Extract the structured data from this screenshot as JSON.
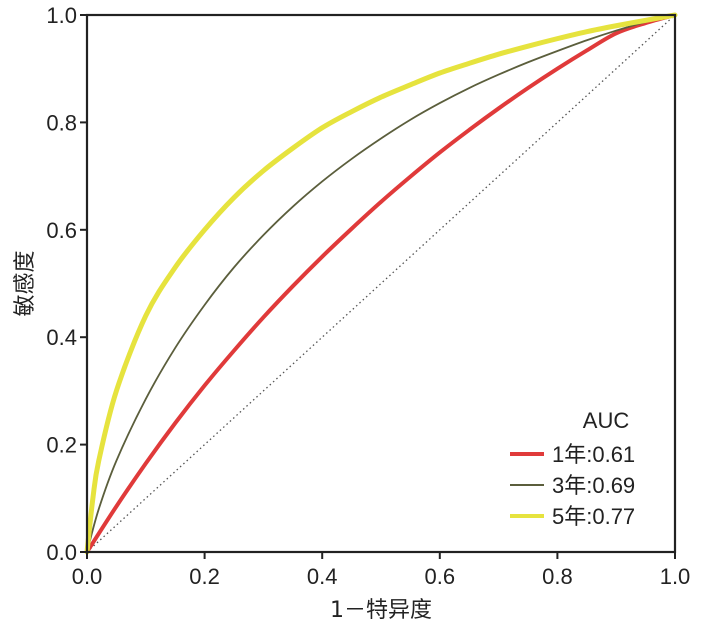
{
  "chart_data": {
    "type": "line",
    "xlabel": "1－特异度",
    "ylabel": "敏感度",
    "xlim": [
      0.0,
      1.0
    ],
    "ylim": [
      0.0,
      1.0
    ],
    "x_ticks": [
      "0.0",
      "0.2",
      "0.4",
      "0.6",
      "0.8",
      "1.0"
    ],
    "y_ticks": [
      "0.0",
      "0.2",
      "0.4",
      "0.6",
      "0.8",
      "1.0"
    ],
    "grid": false,
    "legend": {
      "title": "AUC",
      "placement": "bottom-right"
    },
    "reference_line": {
      "x": [
        0,
        1
      ],
      "y": [
        0,
        1
      ],
      "style": "dotted",
      "color": "#555555"
    },
    "series": [
      {
        "name": "1年:0.61",
        "color": "#e03a3a",
        "x": [
          0,
          0.05,
          0.1,
          0.15,
          0.2,
          0.25,
          0.3,
          0.35,
          0.4,
          0.45,
          0.5,
          0.55,
          0.6,
          0.65,
          0.7,
          0.75,
          0.8,
          0.85,
          0.9,
          0.95,
          1.0
        ],
        "y": [
          0,
          0.085,
          0.165,
          0.24,
          0.31,
          0.375,
          0.437,
          0.495,
          0.55,
          0.602,
          0.652,
          0.699,
          0.744,
          0.786,
          0.826,
          0.864,
          0.9,
          0.934,
          0.966,
          0.985,
          1.0
        ]
      },
      {
        "name": "3年:0.69",
        "color": "#5b5e3c",
        "x": [
          0,
          0.02,
          0.05,
          0.1,
          0.15,
          0.2,
          0.25,
          0.3,
          0.35,
          0.4,
          0.45,
          0.5,
          0.55,
          0.6,
          0.65,
          0.7,
          0.75,
          0.8,
          0.85,
          0.9,
          0.95,
          1.0
        ],
        "y": [
          0,
          0.08,
          0.17,
          0.285,
          0.38,
          0.46,
          0.53,
          0.59,
          0.643,
          0.69,
          0.732,
          0.77,
          0.805,
          0.836,
          0.864,
          0.889,
          0.912,
          0.933,
          0.953,
          0.971,
          0.987,
          1.0
        ]
      },
      {
        "name": "5年:0.77",
        "color": "#e6e33e",
        "x": [
          0,
          0.01,
          0.02,
          0.05,
          0.1,
          0.15,
          0.2,
          0.25,
          0.3,
          0.35,
          0.4,
          0.45,
          0.5,
          0.55,
          0.6,
          0.65,
          0.7,
          0.75,
          0.8,
          0.85,
          0.9,
          0.95,
          1.0
        ],
        "y": [
          0,
          0.1,
          0.17,
          0.3,
          0.44,
          0.53,
          0.6,
          0.66,
          0.71,
          0.752,
          0.79,
          0.82,
          0.847,
          0.87,
          0.892,
          0.91,
          0.927,
          0.942,
          0.956,
          0.969,
          0.98,
          0.99,
          1.0
        ]
      }
    ]
  }
}
